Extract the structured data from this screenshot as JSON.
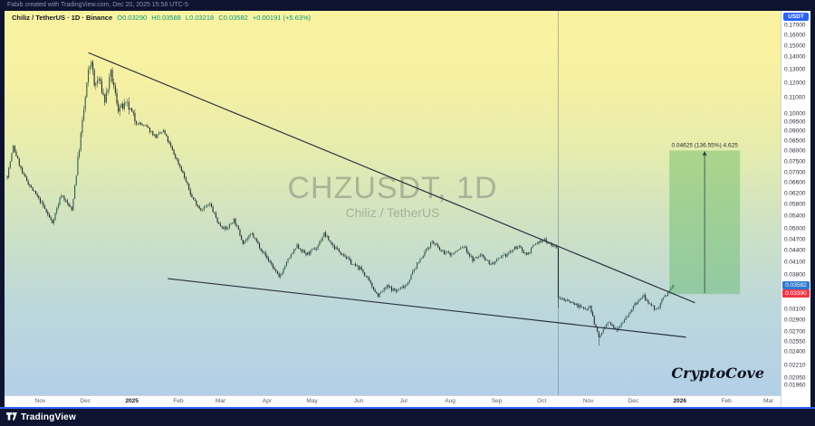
{
  "attribution": "Fabib created with TradingView.com, Dec 20, 2025 15:58 UTC-5",
  "header": {
    "title": "Chiliz / TetherUS · 1D · Binance",
    "ohlc": {
      "o": "O0.03290",
      "h": "H0.03588",
      "l": "L0.03218",
      "c": "C0.03582",
      "change": "+0.00191 (+5.63%)"
    }
  },
  "watermark": {
    "title": "CHZUSDT, 1D",
    "subtitle": "Chiliz / TetherUS"
  },
  "signature": "CryptoCove",
  "footer": {
    "brand": "TradingView"
  },
  "axis": {
    "currency_badge": "USDT",
    "last_price": "0.03582",
    "alert_price": "0.03390"
  },
  "colors": {
    "accent_blue": "#2962ff",
    "up_green": "#089981",
    "down_red": "#f23645",
    "candle_up": "#2e5c50",
    "candle_down": "#1e2531",
    "trendline": "#2b3140",
    "projection_fill": "rgba(76,175,80,0.38)",
    "badge_last": "#2e79d0",
    "badge_alert": "#f23645",
    "vline": "rgba(80,95,130,0.6)"
  },
  "chart_data": {
    "type": "candlestick",
    "title": "CHZUSDT, 1D",
    "symbol": "CHZUSDT",
    "exchange": "Binance",
    "interval": "1D",
    "scale": "log",
    "price_min": 0.0185,
    "price_max": 0.185,
    "last_day": 444,
    "last_close": 0.03582,
    "crash_day": 367,
    "crash_close": 0.0332,
    "capitulation_day": 394,
    "capitulation_low": 0.0249,
    "path": [
      [
        0,
        0.0688
      ],
      [
        4,
        0.082
      ],
      [
        10,
        0.07
      ],
      [
        16,
        0.064
      ],
      [
        23,
        0.0583
      ],
      [
        30,
        0.052
      ],
      [
        36,
        0.0616
      ],
      [
        43,
        0.056
      ],
      [
        49,
        0.088
      ],
      [
        54,
        0.128
      ],
      [
        56,
        0.138
      ],
      [
        58,
        0.118
      ],
      [
        61,
        0.123
      ],
      [
        65,
        0.108
      ],
      [
        69,
        0.127
      ],
      [
        74,
        0.103
      ],
      [
        80,
        0.105
      ],
      [
        86,
        0.095
      ],
      [
        93,
        0.092
      ],
      [
        99,
        0.087
      ],
      [
        104,
        0.09
      ],
      [
        110,
        0.08
      ],
      [
        116,
        0.0715
      ],
      [
        123,
        0.0605
      ],
      [
        129,
        0.0563
      ],
      [
        135,
        0.058
      ],
      [
        141,
        0.0515
      ],
      [
        146,
        0.05
      ],
      [
        151,
        0.053
      ],
      [
        157,
        0.0463
      ],
      [
        163,
        0.0485
      ],
      [
        170,
        0.0438
      ],
      [
        176,
        0.0405
      ],
      [
        181,
        0.0374
      ],
      [
        187,
        0.0416
      ],
      [
        193,
        0.0452
      ],
      [
        199,
        0.043
      ],
      [
        206,
        0.0447
      ],
      [
        211,
        0.0487
      ],
      [
        217,
        0.0452
      ],
      [
        224,
        0.043
      ],
      [
        230,
        0.0405
      ],
      [
        236,
        0.0393
      ],
      [
        241,
        0.0365
      ],
      [
        247,
        0.0336
      ],
      [
        253,
        0.0355
      ],
      [
        259,
        0.0345
      ],
      [
        266,
        0.036
      ],
      [
        271,
        0.0393
      ],
      [
        277,
        0.043
      ],
      [
        283,
        0.0465
      ],
      [
        289,
        0.0438
      ],
      [
        296,
        0.043
      ],
      [
        304,
        0.0452
      ],
      [
        310,
        0.0416
      ],
      [
        316,
        0.043
      ],
      [
        322,
        0.0405
      ],
      [
        327,
        0.0416
      ],
      [
        334,
        0.0434
      ],
      [
        340,
        0.0452
      ],
      [
        346,
        0.043
      ],
      [
        352,
        0.0459
      ],
      [
        358,
        0.047
      ],
      [
        364,
        0.0452
      ],
      [
        366,
        0.0448
      ],
      [
        367,
        0.0332
      ],
      [
        373,
        0.0327
      ],
      [
        379,
        0.0318
      ],
      [
        385,
        0.0309
      ],
      [
        388,
        0.0318
      ],
      [
        391,
        0.0285
      ],
      [
        394,
        0.0262
      ],
      [
        400,
        0.0285
      ],
      [
        406,
        0.0276
      ],
      [
        412,
        0.0295
      ],
      [
        418,
        0.0318
      ],
      [
        424,
        0.0336
      ],
      [
        427,
        0.0318
      ],
      [
        433,
        0.0309
      ],
      [
        436,
        0.0327
      ],
      [
        444,
        0.0358
      ]
    ],
    "price_labels": [
      "0.17000",
      "0.16000",
      "0.15000",
      "0.14000",
      "0.13000",
      "0.12000",
      "0.11000",
      "0.10000",
      "0.09500",
      "0.09000",
      "0.08500",
      "0.08000",
      "0.07500",
      "0.07000",
      "0.06600",
      "0.06200",
      "0.05800",
      "0.05400",
      "0.05000",
      "0.04700",
      "0.04400",
      "0.04100",
      "0.03800",
      "0.03600",
      "0.03400",
      "0.03100",
      "0.02900",
      "0.02700",
      "0.02550",
      "0.02400",
      "0.02210",
      "0.02050",
      "0.01960"
    ],
    "months": [
      {
        "label": "Nov",
        "d": 22
      },
      {
        "label": "Dec",
        "d": 52
      },
      {
        "label": "2025",
        "d": 83,
        "year": true
      },
      {
        "label": "Feb",
        "d": 114
      },
      {
        "label": "Mar",
        "d": 142
      },
      {
        "label": "Apr",
        "d": 173
      },
      {
        "label": "May",
        "d": 203
      },
      {
        "label": "Jun",
        "d": 234
      },
      {
        "label": "Jul",
        "d": 264
      },
      {
        "label": "Aug",
        "d": 295
      },
      {
        "label": "Sep",
        "d": 326
      },
      {
        "label": "Oct",
        "d": 356
      },
      {
        "label": "Nov",
        "d": 387
      },
      {
        "label": "Dec",
        "d": 417
      },
      {
        "label": "2026",
        "d": 448,
        "year": true
      },
      {
        "label": "Feb",
        "d": 479
      },
      {
        "label": "Mar",
        "d": 507
      }
    ],
    "drawings": {
      "trendlines": [
        {
          "from": [
            54,
            0.144
          ],
          "to": [
            458,
            0.0322
          ]
        },
        {
          "from": [
            107,
            0.0372
          ],
          "to": [
            452,
            0.0262
          ]
        }
      ],
      "vertical_line_day": 367,
      "projection": {
        "d1": 441,
        "d2": 488,
        "p1": 0.0339,
        "p2": 0.08015,
        "label": "0.04625 (136.55%) 4.625"
      }
    }
  }
}
